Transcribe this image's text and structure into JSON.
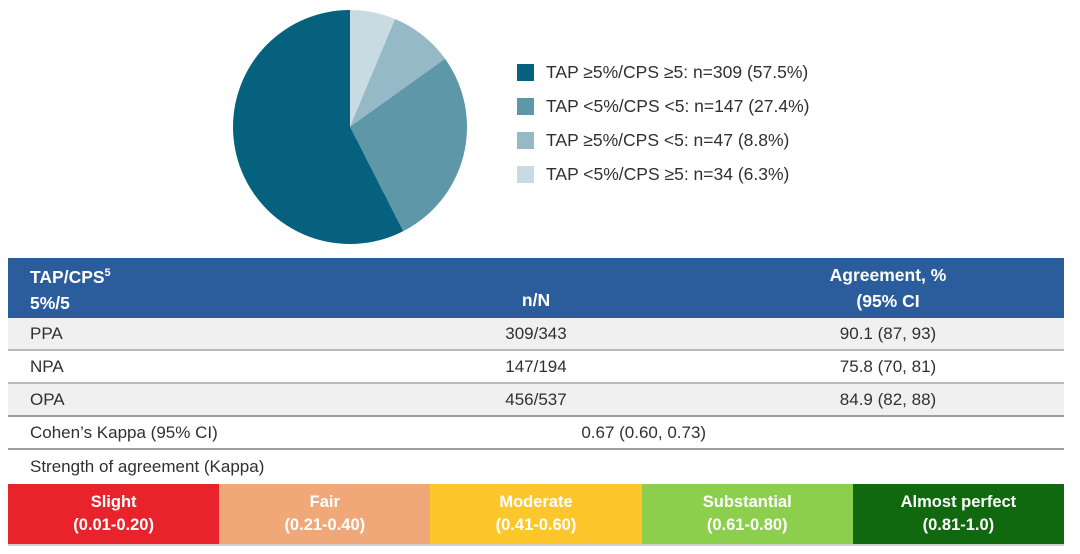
{
  "chart_data": {
    "type": "pie",
    "title": "",
    "legend_position": "right",
    "start_angle_deg": 0,
    "clockwise_order": [
      "TAP <5%/CPS ≥5",
      "TAP ≥5%/CPS <5",
      "TAP <5%/CPS <5",
      "TAP ≥5%/CPS ≥5"
    ],
    "slices": [
      {
        "label": "TAP ≥5%/CPS ≥5: n=309 (57.5%)",
        "group": "TAP ≥5%/CPS ≥5",
        "n": 309,
        "pct": 57.5,
        "color": "#06617e"
      },
      {
        "label": "TAP <5%/CPS <5: n=147 (27.4%)",
        "group": "TAP <5%/CPS <5",
        "n": 147,
        "pct": 27.4,
        "color": "#5e97a8"
      },
      {
        "label": "TAP ≥5%/CPS <5: n=47 (8.8%)",
        "group": "TAP ≥5%/CPS <5",
        "n": 47,
        "pct": 8.8,
        "color": "#96b9c7"
      },
      {
        "label": "TAP <5%/CPS ≥5: n=34 (6.3%)",
        "group": "TAP <5%/CPS ≥5",
        "n": 34,
        "pct": 6.3,
        "color": "#c8dbe2"
      }
    ]
  },
  "table": {
    "header": {
      "col1_title": "TAP/CPS",
      "col1_sup": "5",
      "col1_line2": "5%/5",
      "col2": "n/N",
      "col3_line1": "Agreement, %",
      "col3_line2": "(95% CI",
      "bg_color": "#2b5c9c"
    },
    "rows": [
      {
        "label": "PPA",
        "n_N": "309/343",
        "agreement": "90.1 (87, 93)"
      },
      {
        "label": "NPA",
        "n_N": "147/194",
        "agreement": "75.8 (70, 81)"
      },
      {
        "label": "OPA",
        "n_N": "456/537",
        "agreement": "84.9 (82, 88)"
      }
    ],
    "kappa": {
      "label": "Cohen’s Kappa (95% CI)",
      "value": "0.67 (0.60, 0.73)"
    },
    "strength_label": "Strength of agreement (Kappa)"
  },
  "scale": {
    "segments": [
      {
        "name": "Slight",
        "range": "(0.01-0.20)",
        "color": "#e8232b"
      },
      {
        "name": "Fair",
        "range": "(0.21-0.40)",
        "color": "#f0a878"
      },
      {
        "name": "Moderate",
        "range": "(0.41-0.60)",
        "color": "#fdc72c"
      },
      {
        "name": "Substantial",
        "range": "(0.61-0.80)",
        "color": "#8ccf4d"
      },
      {
        "name": "Almost perfect",
        "range": "(0.81-1.0)",
        "color": "#11690f"
      }
    ]
  }
}
